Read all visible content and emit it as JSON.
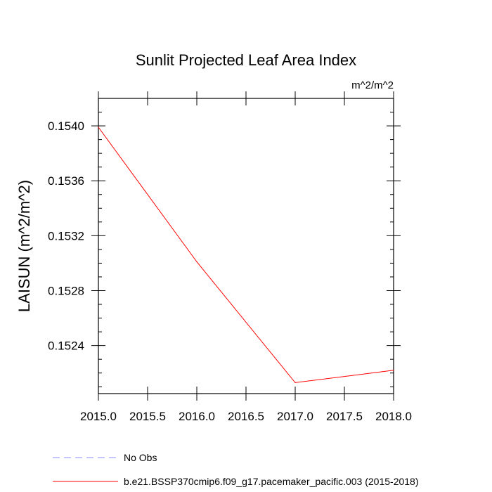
{
  "chart_data": {
    "type": "line",
    "title": "Sunlit Projected Leaf Area Index",
    "units_label": "m^2/m^2",
    "ylabel": "LAISUN  (m^2/m^2)",
    "xlabel": "",
    "xlim": [
      2015.0,
      2018.0
    ],
    "ylim": [
      0.15205,
      0.1542
    ],
    "x_ticks": [
      2015.0,
      2015.5,
      2016.0,
      2016.5,
      2017.0,
      2017.5,
      2018.0
    ],
    "x_tick_labels": [
      "2015.0",
      "2015.5",
      "2016.0",
      "2016.5",
      "2017.0",
      "2017.5",
      "2018.0"
    ],
    "y_ticks": [
      0.1524,
      0.1528,
      0.1532,
      0.1536,
      0.154
    ],
    "y_tick_labels": [
      "0.1524",
      "0.1528",
      "0.1532",
      "0.1536",
      "0.1540"
    ],
    "grid": false,
    "series": [
      {
        "name": "b.e21.BSSP370cmip6.f09_g17.pacemaker_pacific.003 (2015-2018)",
        "color": "#ff0000",
        "dash": "solid",
        "x": [
          2015.0,
          2016.0,
          2017.0,
          2018.0
        ],
        "values": [
          0.15399,
          0.15301,
          0.15213,
          0.15222
        ]
      }
    ],
    "legend": [
      {
        "label": "No Obs",
        "color": "#8888ff",
        "dash": "dashed"
      },
      {
        "label": "b.e21.BSSP370cmip6.f09_g17.pacemaker_pacific.003 (2015-2018)",
        "color": "#ff0000",
        "dash": "solid"
      }
    ],
    "legend_position": "bottom-left"
  }
}
